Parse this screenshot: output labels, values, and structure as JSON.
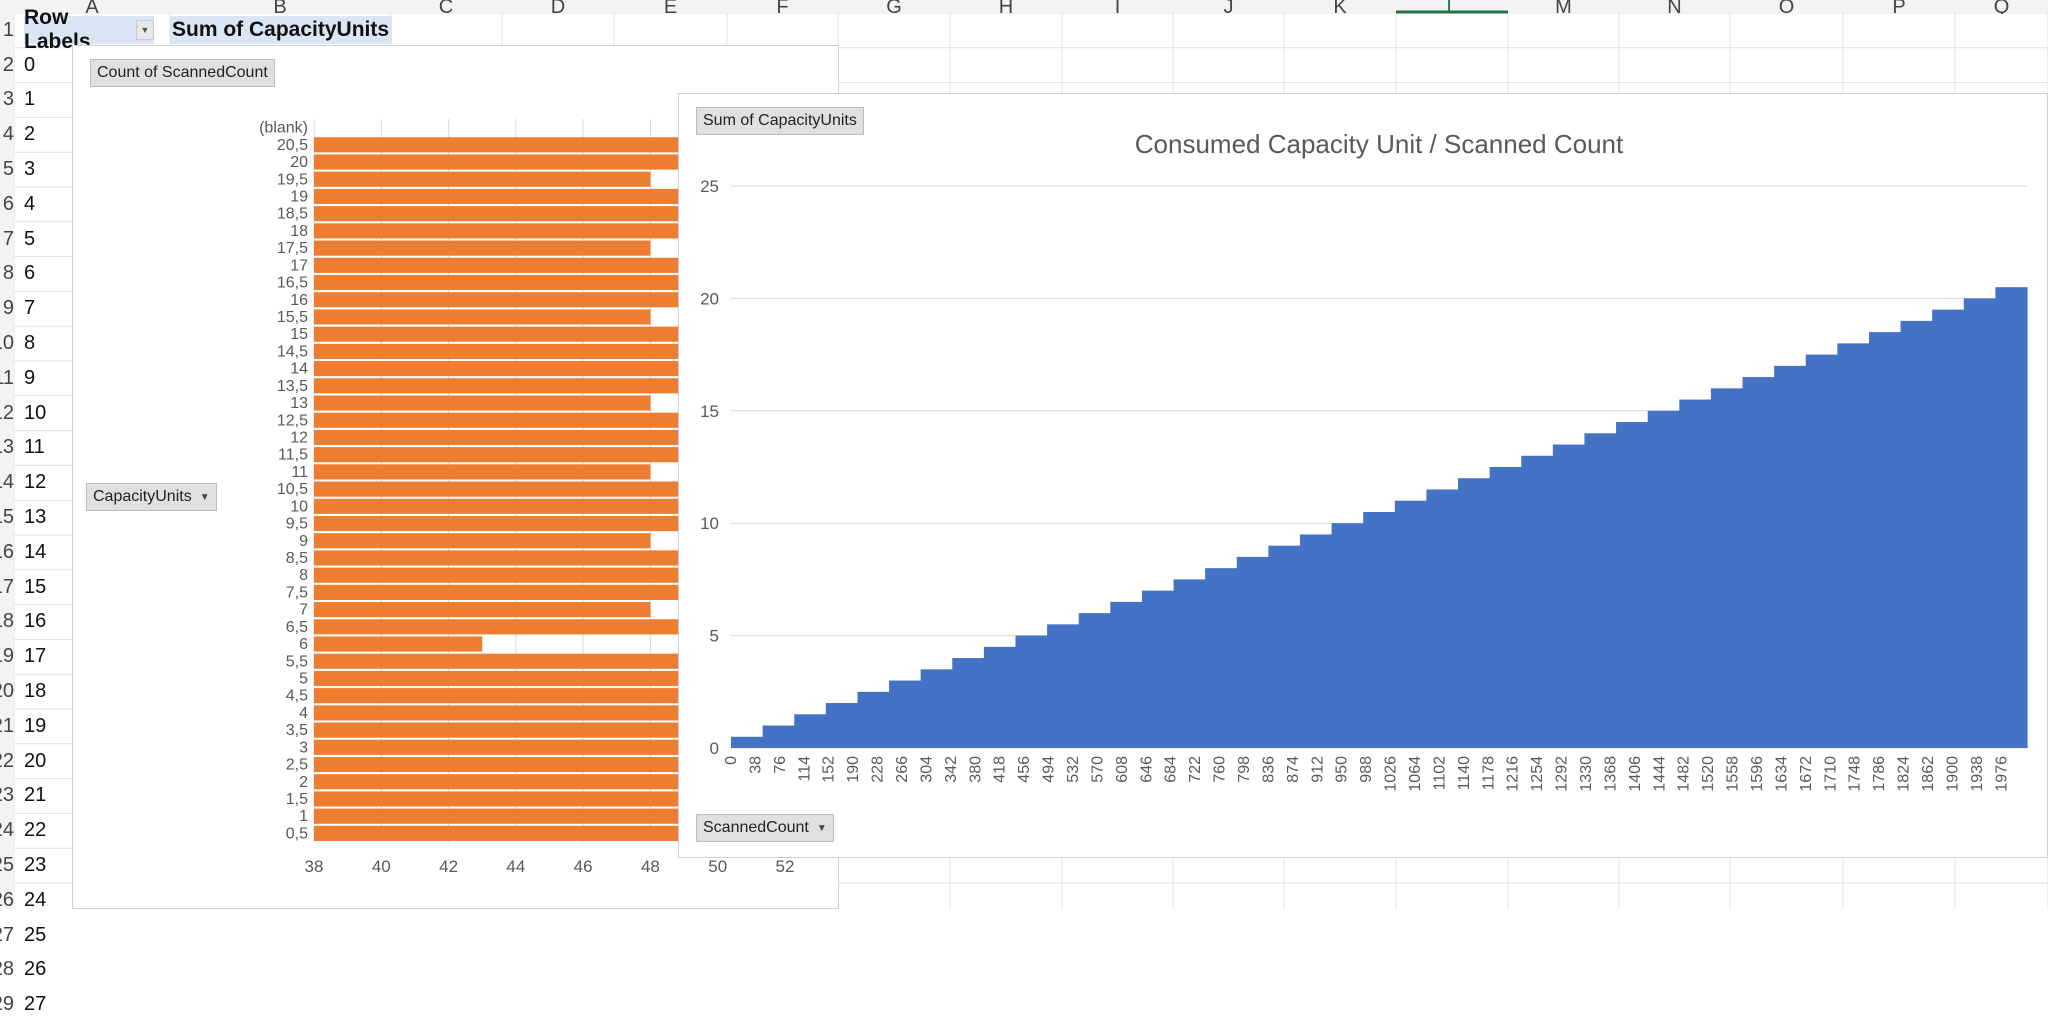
{
  "columns": [
    "A",
    "B",
    "C",
    "D",
    "E",
    "F",
    "G",
    "H",
    "I",
    "J",
    "K",
    "L",
    "M",
    "N",
    "O",
    "P",
    "Q"
  ],
  "active_column": "L",
  "row_numbers": [
    "1",
    "2",
    "3",
    "4",
    "5",
    "6",
    "7",
    "8",
    "9",
    "10",
    "11",
    "12",
    "13",
    "14",
    "15",
    "16",
    "17",
    "18",
    "19",
    "20",
    "21",
    "22",
    "23",
    "24",
    "25",
    "26",
    "27",
    "28",
    "29"
  ],
  "pivot": {
    "row_labels_header": "Row Labels",
    "sum_header": "Sum of CapacityUnits",
    "row_values": [
      "0",
      "1",
      "2",
      "3",
      "4",
      "5",
      "6",
      "7",
      "8",
      "9",
      "10",
      "11",
      "12",
      "13",
      "14",
      "15",
      "16",
      "17",
      "18",
      "19",
      "20",
      "21",
      "22",
      "23",
      "24",
      "25",
      "26",
      "27"
    ]
  },
  "chart1": {
    "value_button": "Count of ScannedCount",
    "axis_button": "CapacityUnits",
    "bar_color": "#ed7d31",
    "chart_data": {
      "type": "bar",
      "orientation": "horizontal",
      "categories": [
        "(blank)",
        "20,5",
        "20",
        "19,5",
        "19",
        "18,5",
        "18",
        "17,5",
        "17",
        "16,5",
        "16",
        "15,5",
        "15",
        "14,5",
        "14",
        "13,5",
        "13",
        "12,5",
        "12",
        "11,5",
        "11",
        "10,5",
        "10",
        "9,5",
        "9",
        "8,5",
        "8",
        "7,5",
        "7",
        "6,5",
        "6",
        "5,5",
        "5",
        "4,5",
        "4",
        "3,5",
        "3",
        "2,5",
        "2",
        "1,5",
        "1",
        "0,5"
      ],
      "values": [
        null,
        49,
        49,
        48,
        49,
        49,
        49,
        48,
        49,
        49,
        49,
        48,
        49,
        49,
        49,
        49,
        48,
        49,
        49,
        49,
        48,
        49,
        49,
        49,
        48,
        49,
        49,
        49,
        48,
        49,
        43,
        49,
        49,
        50,
        49,
        49,
        50,
        49,
        49,
        50,
        49,
        50
      ],
      "xlim": [
        38,
        52
      ],
      "xticks": [
        "38",
        "40",
        "42",
        "44",
        "46",
        "48",
        "50",
        "52"
      ],
      "grid": true
    }
  },
  "chart2": {
    "value_button": "Sum of CapacityUnits",
    "axis_button": "ScannedCount",
    "area_color": "#4472c4",
    "chart_data": {
      "type": "area",
      "title": "Consumed Capacity Unit / Scanned Count",
      "x_tick_labels": [
        "0",
        "38",
        "76",
        "114",
        "152",
        "190",
        "228",
        "266",
        "304",
        "342",
        "380",
        "418",
        "456",
        "494",
        "532",
        "570",
        "608",
        "646",
        "684",
        "722",
        "760",
        "798",
        "836",
        "874",
        "912",
        "950",
        "988",
        "1026",
        "1064",
        "1102",
        "1140",
        "1178",
        "1216",
        "1254",
        "1292",
        "1330",
        "1368",
        "1406",
        "1444",
        "1482",
        "1520",
        "1558",
        "1596",
        "1634",
        "1672",
        "1710",
        "1748",
        "1786",
        "1824",
        "1862",
        "1900",
        "1938",
        "1976"
      ],
      "y_tick_labels": [
        "0",
        "5",
        "10",
        "15",
        "20",
        "25"
      ],
      "step_values": [
        0.5,
        1,
        1.5,
        2,
        2.5,
        3,
        3.5,
        4,
        4.5,
        5,
        5.5,
        6,
        6.5,
        7,
        7.5,
        8,
        8.5,
        9,
        9.5,
        10,
        10.5,
        11,
        11.5,
        12,
        12.5,
        13,
        13.5,
        14,
        14.5,
        15,
        15.5,
        16,
        16.5,
        17,
        17.5,
        18,
        18.5,
        19,
        19.5,
        20,
        20.5
      ],
      "ylim": [
        0,
        25
      ],
      "xlim": [
        0,
        2016
      ],
      "grid": true,
      "legend": "none"
    }
  }
}
